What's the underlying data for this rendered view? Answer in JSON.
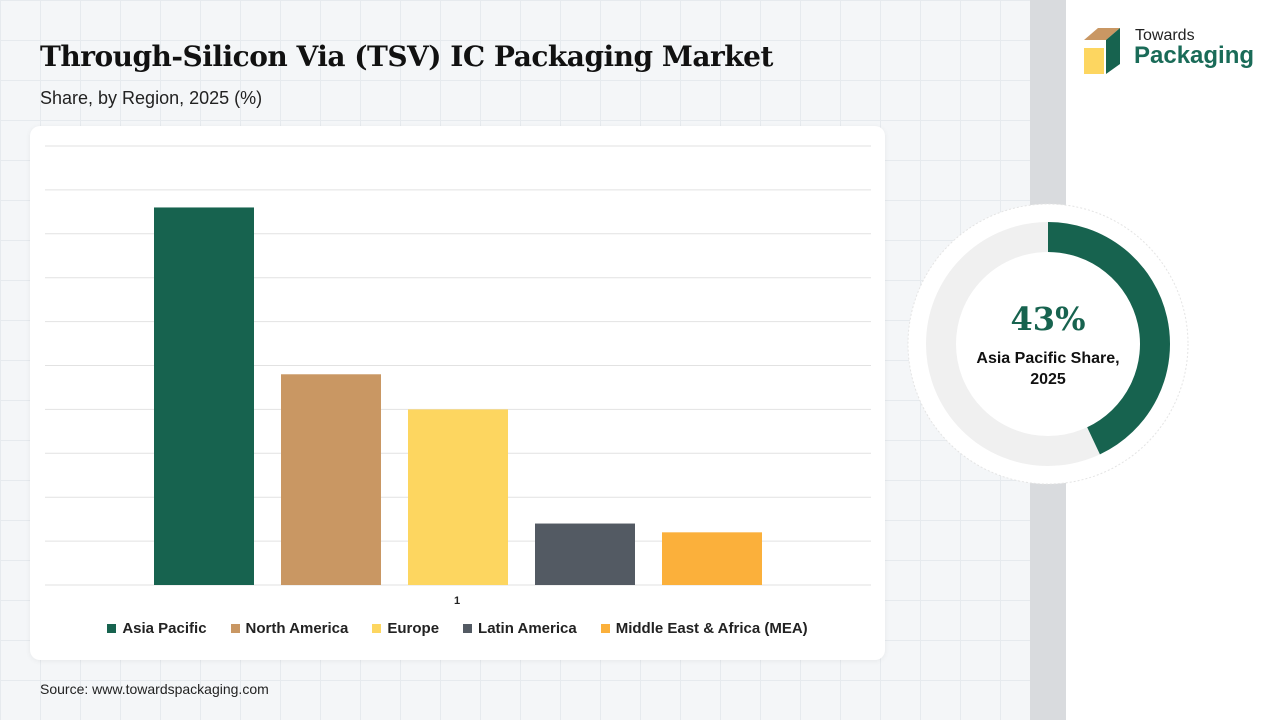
{
  "title": "Through-Silicon Via (TSV) IC Packaging Market",
  "subtitle": "Share, by Region, 2025 (%)",
  "source": "Source: www.towardspackaging.com",
  "logo": {
    "line1": "Towards",
    "line2": "Packaging"
  },
  "highlight": {
    "value": "43%",
    "label_line1": "Asia Pacific Share,",
    "label_line2": "2025",
    "fraction": 0.43,
    "color": "#17634f",
    "track_color": "#f0f0f0"
  },
  "chart_data": {
    "type": "bar",
    "categories": [
      "1"
    ],
    "ylim": [
      0,
      50
    ],
    "grid": true,
    "legend_position": "bottom",
    "series": [
      {
        "name": "Asia Pacific",
        "values": [
          43
        ],
        "color": "#17634f"
      },
      {
        "name": "North America",
        "values": [
          24
        ],
        "color": "#c99763"
      },
      {
        "name": "Europe",
        "values": [
          20
        ],
        "color": "#fdd660"
      },
      {
        "name": "Latin America",
        "values": [
          7
        ],
        "color": "#535a63"
      },
      {
        "name": "Middle East & Africa (MEA)",
        "values": [
          6
        ],
        "color": "#fbb03b"
      }
    ]
  }
}
